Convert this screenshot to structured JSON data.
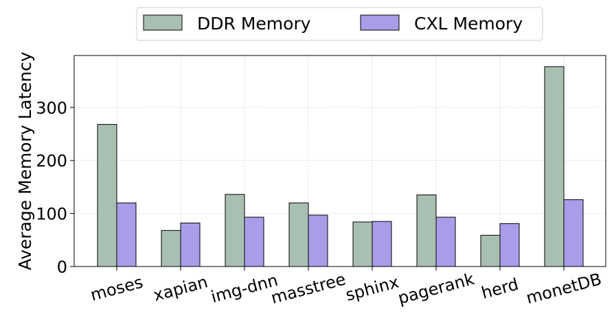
{
  "chart_data": {
    "type": "bar",
    "title": "",
    "xlabel": "",
    "ylabel": "Average Memory Latency",
    "ylim": [
      0,
      398
    ],
    "yticks": [
      "0",
      "100",
      "200",
      "300"
    ],
    "grid": true,
    "legend_position": "top-center",
    "categories": [
      "moses",
      "xapian",
      "img-dnn",
      "masstree",
      "sphinx",
      "pagerank",
      "herd",
      "monetDB"
    ],
    "series": [
      {
        "name": "DDR Memory",
        "color": "#a9bfb1",
        "values": [
          268,
          68,
          136,
          120,
          84,
          135,
          59,
          377
        ]
      },
      {
        "name": "CXL Memory",
        "color": "#a89de8",
        "values": [
          120,
          82,
          93,
          97,
          85,
          93,
          81,
          126
        ]
      }
    ]
  }
}
